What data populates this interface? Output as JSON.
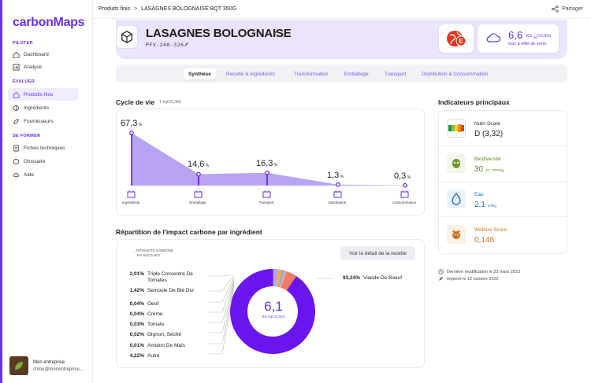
{
  "app": {
    "logo": "carbonMaps"
  },
  "sidebar": {
    "sections": [
      {
        "title": "PILOTER",
        "items": [
          {
            "label": "Dashboard",
            "icon": "home-icon"
          },
          {
            "label": "Analyse",
            "icon": "chart-icon"
          }
        ]
      },
      {
        "title": "ÉVALUER",
        "items": [
          {
            "label": "Produits finis",
            "icon": "home-icon",
            "active": true
          },
          {
            "label": "Ingrédients",
            "icon": "ingredients-icon"
          },
          {
            "label": "Fournisseurs",
            "icon": "suppliers-icon"
          }
        ]
      },
      {
        "title": "SE FORMER",
        "items": [
          {
            "label": "Fiches techniques",
            "icon": "document-icon"
          },
          {
            "label": "Glossaire",
            "icon": "chat-icon"
          },
          {
            "label": "Aide",
            "icon": "help-icon"
          }
        ]
      }
    ],
    "company": {
      "name": "Mon entreprise",
      "email": "chloe@monentreprise...."
    }
  },
  "topbar": {
    "breadcrumb_root": "Produits finis",
    "breadcrumb_sep": ">",
    "breadcrumb_current": "LASAGNES BOLOGNAISE BQT 350G",
    "share_label": "Partager"
  },
  "product": {
    "title": "LASAGNES BOLOGNAISE",
    "code": "PFV-240-326",
    "score_badge": "E",
    "co2_value": "6,6",
    "co2_unit": "KG ",
    "co2_unit_sub": "éq",
    "co2_unit_tail": "CO₂/KG",
    "co2_label": "Gaz à effet de serre"
  },
  "tabs": [
    {
      "label": "Synthèse",
      "active": true
    },
    {
      "label": "Recette & ingrédients"
    },
    {
      "label": "Transformation"
    },
    {
      "label": "Emballage"
    },
    {
      "label": "Transport"
    },
    {
      "label": "Distribution & Consommation"
    }
  ],
  "lifecycle": {
    "title": "Cycle de vie",
    "unit": "T éqCO₂/KG",
    "percent_symbol": "%",
    "stages": [
      {
        "label": "Ingrédients",
        "value": "67,3",
        "pct": 67.3,
        "icon": "factory-icon"
      },
      {
        "label": "Emballage",
        "value": "14,6",
        "pct": 14.6,
        "icon": "box-icon"
      },
      {
        "label": "Transport",
        "value": "16,3",
        "pct": 16.3,
        "icon": "truck-icon"
      },
      {
        "label": "Distribution",
        "value": "1,3",
        "pct": 1.3,
        "icon": "store-icon"
      },
      {
        "label": "Consommation",
        "value": "0,3",
        "pct": 0.3,
        "icon": "bottle-icon"
      }
    ]
  },
  "breakdown": {
    "title": "Répartition de l'impact carbone par ingrédient",
    "intensity_label": "INTENSITÉ CARBONE",
    "intensity_unit": "KG éqCO₂/KG",
    "detail_button": "Voir le détail de la recette",
    "center_value": "6,1",
    "center_unit": "KG éqCO₂/KG",
    "items": [
      {
        "pct": "2,01%",
        "label": "Triple Concentré De Tomates",
        "value": 2.01,
        "color": "#b7a6f4"
      },
      {
        "pct": "1,42%",
        "label": "Semoule De Blé Dur",
        "value": 1.42,
        "color": "#f0b03c"
      },
      {
        "pct": "0,04%",
        "label": "Oeuf",
        "value": 0.04,
        "color": "#8f7ae6"
      },
      {
        "pct": "0,04%",
        "label": "Crème",
        "value": 0.04,
        "color": "#6fd0ea"
      },
      {
        "pct": "0,03%",
        "label": "Tomate",
        "value": 0.03,
        "color": "#e85fa8"
      },
      {
        "pct": "0,02%",
        "label": "Oignon, Séché",
        "value": 0.02,
        "color": "#9fd89a"
      },
      {
        "pct": "0,01%",
        "label": "Amidon De Maïs",
        "value": 0.01,
        "color": "#c9b8f7"
      },
      {
        "pct": "4,22%",
        "label": "Autre",
        "value": 4.22,
        "color": "#ef7a66"
      },
      {
        "pct": "93,24%",
        "label": "Viande De Boeuf",
        "value": 93.24,
        "color": "#6a14ee"
      }
    ]
  },
  "indicators": {
    "title": "Indicateurs principaux",
    "items": [
      {
        "label": "Nutri-Score",
        "value": "D (3,32)",
        "unit": "",
        "color": "#222222",
        "icon": "nutriscore-icon"
      },
      {
        "label": "Biodiversité",
        "value": "30",
        "unit": "10⁻ PDF/kg",
        "color": "#5a8a1c",
        "icon": "biodiversity-icon"
      },
      {
        "label": "Eau",
        "value": "2,1",
        "unit": "m³/kg",
        "color": "#1e6fc8",
        "icon": "water-icon"
      },
      {
        "label": "Welfare Score",
        "value": "0,146",
        "unit": "",
        "color": "#c8721e",
        "icon": "welfare-icon"
      }
    ],
    "last_modified": "Dernière modification le 23 mars 2023",
    "imported": "Importé le 12 octobre 2022"
  },
  "colors": {
    "accent": "#6a2ee8",
    "header_bg": "#ebe4fc",
    "area": "#b9a3f3"
  }
}
